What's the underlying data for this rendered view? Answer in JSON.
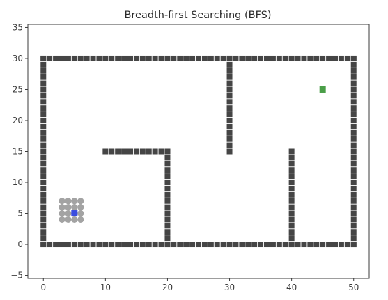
{
  "chart_data": {
    "type": "scatter",
    "title": "Breadth-first Searching (BFS)",
    "xlabel": "",
    "ylabel": "",
    "xlim": [
      -2.5,
      52.5
    ],
    "ylim": [
      -5.5,
      35.5
    ],
    "xticks": [
      0,
      10,
      20,
      30,
      40,
      50
    ],
    "yticks": [
      -5,
      0,
      5,
      10,
      15,
      20,
      25,
      30,
      35
    ],
    "xtick_labels": [
      "0",
      "10",
      "20",
      "30",
      "40",
      "50"
    ],
    "ytick_labels": [
      "−5",
      "0",
      "5",
      "10",
      "15",
      "20",
      "25",
      "30",
      "35"
    ],
    "grid": false,
    "legend": null,
    "obstacle_segments": [
      {
        "from": [
          0,
          0
        ],
        "to": [
          50,
          0
        ]
      },
      {
        "from": [
          0,
          30
        ],
        "to": [
          50,
          30
        ]
      },
      {
        "from": [
          0,
          0
        ],
        "to": [
          0,
          30
        ]
      },
      {
        "from": [
          50,
          0
        ],
        "to": [
          50,
          30
        ]
      },
      {
        "from": [
          10,
          15
        ],
        "to": [
          20,
          15
        ]
      },
      {
        "from": [
          20,
          0
        ],
        "to": [
          20,
          15
        ]
      },
      {
        "from": [
          30,
          15
        ],
        "to": [
          30,
          30
        ]
      },
      {
        "from": [
          40,
          0
        ],
        "to": [
          40,
          15
        ]
      }
    ],
    "visited_nodes": [
      [
        3,
        4
      ],
      [
        4,
        4
      ],
      [
        5,
        4
      ],
      [
        6,
        4
      ],
      [
        3,
        5
      ],
      [
        4,
        5
      ],
      [
        6,
        5
      ],
      [
        3,
        6
      ],
      [
        4,
        6
      ],
      [
        5,
        6
      ],
      [
        6,
        6
      ],
      [
        3,
        7
      ],
      [
        4,
        7
      ],
      [
        5,
        7
      ],
      [
        6,
        7
      ]
    ],
    "start": [
      5,
      5
    ],
    "goal": [
      45,
      25
    ],
    "colors": {
      "obstacle": "#454545",
      "visited": "#a3a3a3",
      "start": "#3a4de0",
      "goal": "#4a9e48",
      "axes": "#3b3b3b"
    }
  }
}
